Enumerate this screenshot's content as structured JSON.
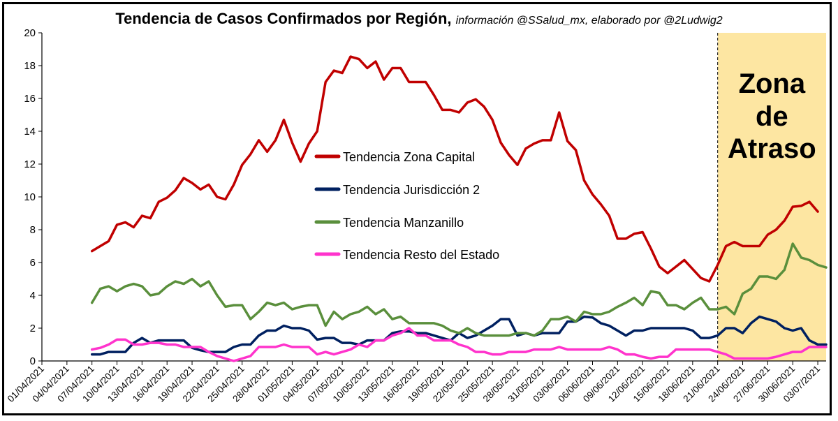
{
  "chart_data": {
    "type": "line",
    "title": "Tendencia de Casos Confirmados por Región,",
    "subtitle": "información @SSalud_mx, elaborado por @2Ludwig2",
    "x_start": "01/04/2021",
    "x_end": "04/07/2021",
    "x_tick_labels": [
      "01/04/2021",
      "04/04/2021",
      "07/04/2021",
      "10/04/2021",
      "13/04/2021",
      "16/04/2021",
      "19/04/2021",
      "22/04/2021",
      "25/04/2021",
      "28/04/2021",
      "01/05/2021",
      "04/05/2021",
      "07/05/2021",
      "10/05/2021",
      "13/05/2021",
      "16/05/2021",
      "19/05/2021",
      "22/05/2021",
      "25/05/2021",
      "28/05/2021",
      "31/05/2021",
      "03/06/2021",
      "06/06/2021",
      "09/06/2021",
      "12/06/2021",
      "15/06/2021",
      "18/06/2021",
      "21/06/2021",
      "24/06/2021",
      "27/06/2021",
      "30/06/2021",
      "03/07/2021"
    ],
    "ylim": [
      0,
      20
    ],
    "y_ticks": [
      0,
      2,
      4,
      6,
      8,
      10,
      12,
      14,
      16,
      18,
      20
    ],
    "series_start_index": 6,
    "series": [
      {
        "name": "Tendencia Zona Capital",
        "color": "#c00000",
        "values": [
          6.7,
          7.0,
          7.3,
          8.3,
          8.45,
          8.15,
          8.85,
          8.7,
          9.7,
          9.95,
          10.4,
          11.15,
          10.85,
          10.45,
          10.75,
          10.0,
          9.85,
          10.75,
          11.95,
          12.6,
          13.45,
          12.75,
          13.45,
          14.7,
          13.3,
          12.15,
          13.25,
          14.0,
          17.0,
          17.7,
          17.55,
          18.55,
          18.4,
          17.85,
          18.25,
          17.15,
          17.85,
          17.85,
          17.0,
          17.0,
          17.0,
          16.2,
          15.3,
          15.3,
          15.15,
          15.75,
          15.95,
          15.5,
          14.7,
          13.3,
          12.55,
          11.95,
          12.95,
          13.25,
          13.45,
          13.45,
          15.15,
          13.4,
          12.85,
          11.0,
          10.15,
          9.55,
          8.85,
          7.45,
          7.45,
          7.75,
          7.85,
          6.85,
          5.75,
          5.35,
          5.75,
          6.15,
          5.6,
          5.05,
          4.85,
          5.85,
          7.0,
          7.25,
          7.0,
          7.0,
          7.0,
          7.7,
          8.0,
          8.55,
          9.4,
          9.45,
          9.7,
          9.1
        ]
      },
      {
        "name": "Tendencia Jurisdicción 2",
        "color": "#002060",
        "values": [
          0.4,
          0.4,
          0.55,
          0.55,
          0.55,
          1.1,
          1.4,
          1.1,
          1.25,
          1.25,
          1.25,
          1.25,
          0.8,
          0.65,
          0.55,
          0.55,
          0.55,
          0.85,
          1.0,
          1.0,
          1.55,
          1.85,
          1.85,
          2.15,
          2.0,
          2.0,
          1.85,
          1.3,
          1.4,
          1.4,
          1.1,
          1.1,
          1.0,
          1.25,
          1.25,
          1.25,
          1.7,
          1.8,
          1.8,
          1.7,
          1.7,
          1.55,
          1.4,
          1.25,
          1.7,
          1.4,
          1.55,
          1.85,
          2.15,
          2.55,
          2.55,
          1.55,
          1.7,
          1.55,
          1.7,
          1.7,
          1.7,
          2.4,
          2.4,
          2.7,
          2.65,
          2.3,
          2.15,
          1.85,
          1.55,
          1.85,
          1.85,
          2.0,
          2.0,
          2.0,
          2.0,
          2.0,
          1.85,
          1.4,
          1.4,
          1.55,
          2.0,
          2.0,
          1.7,
          2.3,
          2.7,
          2.55,
          2.4,
          2.0,
          1.85,
          2.0,
          1.25,
          1.0,
          1.0
        ]
      },
      {
        "name": "Tendencia Manzanillo",
        "color": "#5a8f3c",
        "values": [
          3.55,
          4.4,
          4.55,
          4.25,
          4.55,
          4.7,
          4.55,
          4.0,
          4.1,
          4.55,
          4.85,
          4.7,
          5.0,
          4.55,
          4.85,
          4.0,
          3.3,
          3.4,
          3.4,
          2.55,
          3.0,
          3.55,
          3.4,
          3.55,
          3.15,
          3.3,
          3.4,
          3.4,
          2.15,
          3.0,
          2.55,
          2.85,
          3.0,
          3.3,
          2.85,
          3.15,
          2.55,
          2.7,
          2.3,
          2.3,
          2.3,
          2.3,
          2.15,
          1.85,
          1.7,
          2.0,
          1.7,
          1.55,
          1.55,
          1.55,
          1.55,
          1.7,
          1.7,
          1.55,
          1.85,
          2.55,
          2.55,
          2.7,
          2.4,
          3.0,
          2.85,
          2.85,
          3.0,
          3.3,
          3.55,
          3.85,
          3.4,
          4.25,
          4.15,
          3.4,
          3.4,
          3.15,
          3.55,
          3.85,
          3.15,
          3.15,
          3.3,
          2.85,
          4.1,
          4.4,
          5.15,
          5.15,
          5.0,
          5.55,
          7.15,
          6.3,
          6.15,
          5.85,
          5.7
        ]
      },
      {
        "name": "Tendencia Resto del Estado",
        "color": "#ff33cc",
        "values": [
          0.7,
          0.8,
          1.0,
          1.3,
          1.3,
          1.0,
          1.0,
          1.1,
          1.1,
          1.0,
          1.0,
          0.85,
          0.85,
          0.85,
          0.55,
          0.3,
          0.15,
          0.0,
          0.15,
          0.3,
          0.85,
          0.85,
          0.85,
          1.0,
          0.85,
          0.85,
          0.85,
          0.4,
          0.55,
          0.4,
          0.55,
          0.7,
          1.0,
          0.85,
          1.25,
          1.25,
          1.55,
          1.7,
          2.0,
          1.55,
          1.55,
          1.25,
          1.25,
          1.25,
          1.0,
          0.85,
          0.55,
          0.55,
          0.4,
          0.4,
          0.55,
          0.55,
          0.55,
          0.7,
          0.7,
          0.7,
          0.85,
          0.7,
          0.7,
          0.7,
          0.7,
          0.7,
          0.85,
          0.7,
          0.4,
          0.4,
          0.25,
          0.15,
          0.25,
          0.25,
          0.7,
          0.7,
          0.7,
          0.7,
          0.7,
          0.55,
          0.4,
          0.15,
          0.15,
          0.15,
          0.15,
          0.15,
          0.25,
          0.4,
          0.55,
          0.55,
          0.85,
          0.85,
          0.85
        ]
      }
    ],
    "shaded_region": {
      "label_lines": [
        "Zona",
        "de",
        "Atraso"
      ],
      "start_label": "21/06/2021",
      "end_label": "04/07/2021",
      "color": "#fde6a2"
    },
    "legend_position": "center-left",
    "grid": false
  }
}
